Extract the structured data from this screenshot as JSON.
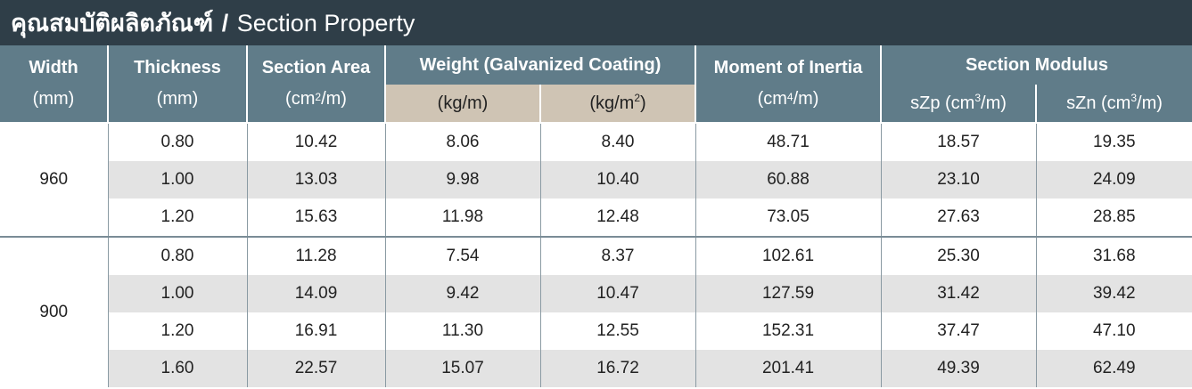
{
  "title": {
    "thai": "คุณสมบัติผลิตภัณฑ์",
    "separator": "/",
    "english": "Section Property"
  },
  "headers": {
    "width": {
      "label": "Width",
      "unit": "(mm)"
    },
    "thickness": {
      "label": "Thickness",
      "unit": "(mm)"
    },
    "section_area": {
      "label": "Section Area",
      "unit_pre": "(cm",
      "unit_sup": "2",
      "unit_post": "/m)"
    },
    "weight": {
      "label": "Weight (Galvanized Coating)",
      "sub1": "(kg/m)",
      "sub2_pre": "(kg/m",
      "sub2_sup": "2",
      "sub2_post": ")"
    },
    "moment": {
      "label": "Moment of Inertia",
      "unit_pre": "(cm",
      "unit_sup": "4",
      "unit_post": "/m)"
    },
    "modulus": {
      "label": "Section Modulus",
      "sub1_pre": "sZp (cm",
      "sub1_sup": "3",
      "sub1_post": "/m)",
      "sub2_pre": "sZn (cm",
      "sub2_sup": "3",
      "sub2_post": "/m)"
    }
  },
  "groups": [
    {
      "width": "960",
      "rows": [
        [
          "0.80",
          "10.42",
          "8.06",
          "8.40",
          "48.71",
          "18.57",
          "19.35"
        ],
        [
          "1.00",
          "13.03",
          "9.98",
          "10.40",
          "60.88",
          "23.10",
          "24.09"
        ],
        [
          "1.20",
          "15.63",
          "11.98",
          "12.48",
          "73.05",
          "27.63",
          "28.85"
        ]
      ]
    },
    {
      "width": "900",
      "rows": [
        [
          "0.80",
          "11.28",
          "7.54",
          "8.37",
          "102.61",
          "25.30",
          "31.68"
        ],
        [
          "1.00",
          "14.09",
          "9.42",
          "10.47",
          "127.59",
          "31.42",
          "39.42"
        ],
        [
          "1.20",
          "16.91",
          "11.30",
          "12.55",
          "152.31",
          "37.47",
          "47.10"
        ],
        [
          "1.60",
          "22.57",
          "15.07",
          "16.72",
          "201.41",
          "49.39",
          "62.49"
        ]
      ]
    }
  ],
  "colors": {
    "title_bg": "#2f3e48",
    "header_bg": "#607c89",
    "subheader_tan": "#cfc4b4",
    "row_shade": "#e3e3e3"
  }
}
